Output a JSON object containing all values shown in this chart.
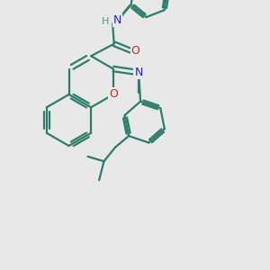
{
  "bg_color": "#e8e8e8",
  "bond_color": "#2d7d6e",
  "N_color": "#2222cc",
  "O_color": "#cc2222",
  "H_color": "#4a9a8a",
  "line_width": 1.6,
  "figsize": [
    3.0,
    3.0
  ],
  "dpi": 100,
  "xlim": [
    0,
    10
  ],
  "ylim": [
    0,
    10
  ]
}
